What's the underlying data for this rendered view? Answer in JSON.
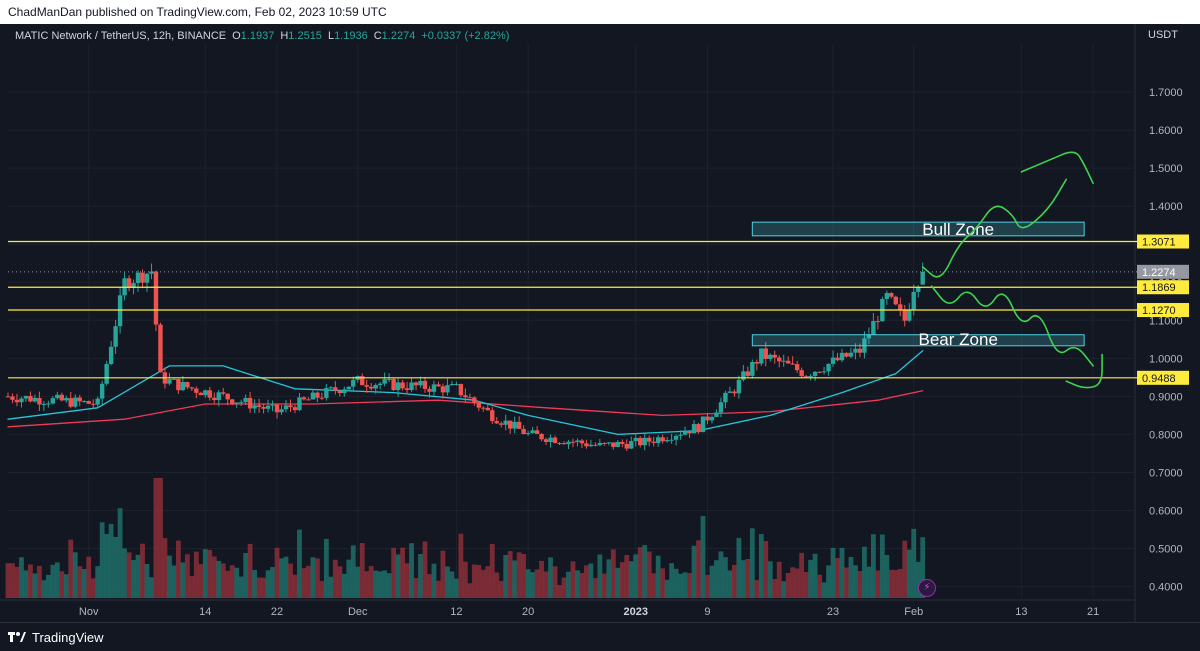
{
  "header": {
    "published_text": "ChadManDan published on TradingView.com, Feb 02, 2023 10:59 UTC"
  },
  "legend": {
    "symbol": "MATIC Network / TetherUS, 12h, BINANCE",
    "o_label": "O",
    "o_value": "1.1937",
    "h_label": "H",
    "h_value": "1.2515",
    "l_label": "L",
    "l_value": "1.1936",
    "c_label": "C",
    "c_value": "1.2274",
    "change": "+0.0337 (+2.82%)"
  },
  "currency_label": "USDT",
  "footer": {
    "brand": "TradingView",
    "logo_icon": "tradingview-logo-icon"
  },
  "colors": {
    "background": "#131722",
    "up": "#26a69a",
    "down": "#ef5350",
    "level": "#ffeb3b",
    "ma_fast": "#26c6da",
    "ma_slow": "#ef3b57",
    "projection": "#3fd34f",
    "zone": "#4dd0e1"
  },
  "chart_data": {
    "type": "candlestick",
    "y_axis": {
      "ylim": [
        0.37,
        1.8
      ],
      "ticks": [
        "1.7000",
        "1.6000",
        "1.5000",
        "1.4000",
        "1.3000",
        "1.2000",
        "1.1000",
        "1.0000",
        "0.9000",
        "0.8000",
        "0.7000",
        "0.6000",
        "0.5000",
        "0.4000"
      ]
    },
    "x_axis": {
      "range": [
        "2022-10-23",
        "2023-02-24"
      ],
      "ticks": [
        {
          "date": "2022-11-01",
          "label": "Nov"
        },
        {
          "date": "2022-11-14",
          "label": "14"
        },
        {
          "date": "2022-11-22",
          "label": "22"
        },
        {
          "date": "2022-12-01",
          "label": "Dec"
        },
        {
          "date": "2022-12-12",
          "label": "12"
        },
        {
          "date": "2022-12-20",
          "label": "20"
        },
        {
          "date": "2023-01-01",
          "label": "2023"
        },
        {
          "date": "2023-01-09",
          "label": "9"
        },
        {
          "date": "2023-01-23",
          "label": "23"
        },
        {
          "date": "2023-02-01",
          "label": "Feb"
        },
        {
          "date": "2023-02-13",
          "label": "13"
        },
        {
          "date": "2023-02-21",
          "label": "21"
        }
      ]
    },
    "last_price": "1.2274",
    "levels": [
      {
        "value": 1.3071,
        "label": "1.3071"
      },
      {
        "value": 1.1869,
        "label": "1.1869"
      },
      {
        "value": 1.127,
        "label": "1.1270"
      },
      {
        "value": 0.9488,
        "label": "0.9488"
      }
    ],
    "zones": [
      {
        "name": "Bull Zone",
        "x0": "2023-01-14",
        "x1": "2023-02-20",
        "y0": 1.322,
        "y1": 1.358
      },
      {
        "name": "Bear Zone",
        "x0": "2023-01-14",
        "x1": "2023-02-20",
        "y0": 1.033,
        "y1": 1.062
      }
    ],
    "key_prices": [
      {
        "date": "2022-10-23",
        "price": 0.9
      },
      {
        "date": "2022-11-02",
        "price": 0.88
      },
      {
        "date": "2022-11-05",
        "price": 1.2
      },
      {
        "date": "2022-11-08",
        "price": 1.23
      },
      {
        "date": "2022-11-09",
        "price": 0.95
      },
      {
        "date": "2022-11-11",
        "price": 0.93
      },
      {
        "date": "2022-11-16",
        "price": 0.9
      },
      {
        "date": "2022-11-22",
        "price": 0.86
      },
      {
        "date": "2022-12-01",
        "price": 0.94
      },
      {
        "date": "2022-12-05",
        "price": 0.93
      },
      {
        "date": "2022-12-12",
        "price": 0.92
      },
      {
        "date": "2022-12-16",
        "price": 0.85
      },
      {
        "date": "2022-12-20",
        "price": 0.8
      },
      {
        "date": "2022-12-28",
        "price": 0.77
      },
      {
        "date": "2023-01-02",
        "price": 0.78
      },
      {
        "date": "2023-01-08",
        "price": 0.82
      },
      {
        "date": "2023-01-12",
        "price": 0.92
      },
      {
        "date": "2023-01-15",
        "price": 1.01
      },
      {
        "date": "2023-01-20",
        "price": 0.96
      },
      {
        "date": "2023-01-26",
        "price": 1.02
      },
      {
        "date": "2023-01-29",
        "price": 1.16
      },
      {
        "date": "2023-01-31",
        "price": 1.1
      },
      {
        "date": "2023-02-01",
        "price": 1.19
      },
      {
        "date": "2023-02-02",
        "price": 1.2274
      }
    ],
    "ma_fast": [
      {
        "date": "2022-10-23",
        "price": 0.84
      },
      {
        "date": "2022-11-02",
        "price": 0.87
      },
      {
        "date": "2022-11-10",
        "price": 0.98
      },
      {
        "date": "2022-11-16",
        "price": 0.98
      },
      {
        "date": "2022-11-24",
        "price": 0.92
      },
      {
        "date": "2022-12-05",
        "price": 0.91
      },
      {
        "date": "2022-12-14",
        "price": 0.89
      },
      {
        "date": "2022-12-20",
        "price": 0.85
      },
      {
        "date": "2022-12-30",
        "price": 0.8
      },
      {
        "date": "2023-01-08",
        "price": 0.81
      },
      {
        "date": "2023-01-16",
        "price": 0.85
      },
      {
        "date": "2023-01-24",
        "price": 0.91
      },
      {
        "date": "2023-01-30",
        "price": 0.96
      },
      {
        "date": "2023-02-02",
        "price": 1.02
      }
    ],
    "ma_slow": [
      {
        "date": "2022-10-23",
        "price": 0.82
      },
      {
        "date": "2022-11-05",
        "price": 0.84
      },
      {
        "date": "2022-11-14",
        "price": 0.88
      },
      {
        "date": "2022-11-26",
        "price": 0.88
      },
      {
        "date": "2022-12-10",
        "price": 0.89
      },
      {
        "date": "2022-12-22",
        "price": 0.87
      },
      {
        "date": "2023-01-04",
        "price": 0.85
      },
      {
        "date": "2023-01-16",
        "price": 0.86
      },
      {
        "date": "2023-01-28",
        "price": 0.89
      },
      {
        "date": "2023-02-02",
        "price": 0.915
      }
    ],
    "projection_up": [
      {
        "date": "2023-02-02",
        "price": 1.24
      },
      {
        "date": "2023-02-04",
        "price": 1.2
      },
      {
        "date": "2023-02-06",
        "price": 1.3
      },
      {
        "date": "2023-02-08",
        "price": 1.34
      },
      {
        "date": "2023-02-10",
        "price": 1.41
      },
      {
        "date": "2023-02-12",
        "price": 1.38
      },
      {
        "date": "2023-02-13",
        "price": 1.33
      },
      {
        "date": "2023-02-16",
        "price": 1.39
      },
      {
        "date": "2023-02-18",
        "price": 1.47
      }
    ],
    "projection_up2": [
      {
        "date": "2023-02-13",
        "price": 1.49
      },
      {
        "date": "2023-02-16",
        "price": 1.52
      },
      {
        "date": "2023-02-19",
        "price": 1.55
      },
      {
        "date": "2023-02-20",
        "price": 1.51
      },
      {
        "date": "2023-02-21",
        "price": 1.46
      }
    ],
    "projection_down": [
      {
        "date": "2023-02-03",
        "price": 1.19
      },
      {
        "date": "2023-02-05",
        "price": 1.13
      },
      {
        "date": "2023-02-07",
        "price": 1.19
      },
      {
        "date": "2023-02-09",
        "price": 1.12
      },
      {
        "date": "2023-02-11",
        "price": 1.19
      },
      {
        "date": "2023-02-13",
        "price": 1.08
      },
      {
        "date": "2023-02-15",
        "price": 1.13
      },
      {
        "date": "2023-02-17",
        "price": 1.0
      },
      {
        "date": "2023-02-19",
        "price": 1.04
      },
      {
        "date": "2023-02-21",
        "price": 0.98
      }
    ],
    "projection_hook": [
      {
        "date": "2023-02-18",
        "price": 0.94
      },
      {
        "date": "2023-02-20",
        "price": 0.92
      },
      {
        "date": "2023-02-22",
        "price": 0.93
      },
      {
        "date": "2023-02-22",
        "price": 1.01
      }
    ]
  }
}
